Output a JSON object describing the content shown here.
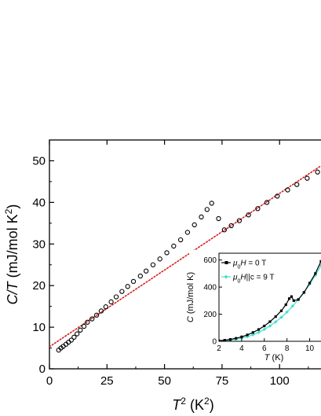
{
  "chart_data": [
    {
      "type": "scatter",
      "xlabel": "T² (K²)",
      "ylabel": "C/T (mJ/mol K²)",
      "xlim": [
        0,
        118
      ],
      "ylim": [
        0,
        55
      ],
      "x_ticks": [
        0,
        25,
        50,
        75,
        100
      ],
      "y_ticks": [
        0,
        10,
        20,
        30,
        40,
        50
      ],
      "series": [
        {
          "marker": "open-circle",
          "color": "#000000",
          "points": [
            [
              4.0,
              4.5
            ],
            [
              5.0,
              5.0
            ],
            [
              6.0,
              5.4
            ],
            [
              7.2,
              5.9
            ],
            [
              8.3,
              6.4
            ],
            [
              9.5,
              6.9
            ],
            [
              10.7,
              7.6
            ],
            [
              12.0,
              8.4
            ],
            [
              13.4,
              9.3
            ],
            [
              15.0,
              10.2
            ],
            [
              16.5,
              11.2
            ],
            [
              18.5,
              12.0
            ],
            [
              20.5,
              12.9
            ],
            [
              22.5,
              13.9
            ],
            [
              24.5,
              14.9
            ],
            [
              26.8,
              16.1
            ],
            [
              29.0,
              17.3
            ],
            [
              31.5,
              18.6
            ],
            [
              34.0,
              19.8
            ],
            [
              36.5,
              21.0
            ],
            [
              39.5,
              22.3
            ],
            [
              42.0,
              23.5
            ],
            [
              45.0,
              25.0
            ],
            [
              48.0,
              26.4
            ],
            [
              51.0,
              27.9
            ],
            [
              54.0,
              29.5
            ],
            [
              57.0,
              31.0
            ],
            [
              60.0,
              32.8
            ],
            [
              63.0,
              34.6
            ],
            [
              66.0,
              36.5
            ],
            [
              68.5,
              38.3
            ],
            [
              70.5,
              39.8
            ],
            [
              73.5,
              36.1
            ],
            [
              76.0,
              33.4
            ],
            [
              79.0,
              34.4
            ],
            [
              82.5,
              35.6
            ],
            [
              86.5,
              37.0
            ],
            [
              90.5,
              38.5
            ],
            [
              94.5,
              40.0
            ],
            [
              99.0,
              41.5
            ],
            [
              103.5,
              43.0
            ],
            [
              107.5,
              44.3
            ],
            [
              112.0,
              45.8
            ],
            [
              116.5,
              47.3
            ],
            [
              120.0,
              48.5
            ]
          ]
        },
        {
          "style": "dotted-line",
          "color": "#d62020",
          "points": [
            [
              0,
              5.3
            ],
            [
              118,
              48.8
            ]
          ]
        }
      ]
    },
    {
      "type": "line",
      "xlabel": "T (K)",
      "ylabel": "C (mJ/mol K)",
      "xlim": [
        2,
        11
      ],
      "ylim": [
        0,
        650
      ],
      "x_ticks": [
        2,
        4,
        6,
        8,
        10
      ],
      "y_ticks": [
        0,
        200,
        400,
        600
      ],
      "legend_position": "top-left",
      "series": [
        {
          "name": "μ0H = 0 T",
          "color": "#000000",
          "marker": "filled-square",
          "points": [
            [
              2.0,
              4
            ],
            [
              2.5,
              8
            ],
            [
              3.0,
              14
            ],
            [
              3.5,
              22
            ],
            [
              4.0,
              33
            ],
            [
              4.5,
              47
            ],
            [
              5.0,
              65
            ],
            [
              5.5,
              87
            ],
            [
              6.0,
              113
            ],
            [
              6.5,
              145
            ],
            [
              7.0,
              182
            ],
            [
              7.5,
              225
            ],
            [
              7.9,
              270
            ],
            [
              8.2,
              315
            ],
            [
              8.4,
              330
            ],
            [
              8.6,
              300
            ],
            [
              9.0,
              308
            ],
            [
              9.5,
              360
            ],
            [
              10.0,
              430
            ],
            [
              10.5,
              500
            ],
            [
              11.0,
              590
            ]
          ]
        },
        {
          "name": "μ0H||c = 9 T",
          "color": "#40e0d0",
          "marker": "filled-diamond",
          "points": [
            [
              2.0,
              2
            ],
            [
              2.5,
              5
            ],
            [
              3.0,
              9
            ],
            [
              3.5,
              15
            ],
            [
              4.0,
              23
            ],
            [
              4.5,
              34
            ],
            [
              5.0,
              48
            ],
            [
              5.5,
              66
            ],
            [
              6.0,
              88
            ],
            [
              6.5,
              113
            ],
            [
              7.0,
              143
            ],
            [
              7.5,
              177
            ],
            [
              8.0,
              216
            ],
            [
              8.5,
              260
            ],
            [
              9.0,
              309
            ],
            [
              9.5,
              363
            ],
            [
              10.0,
              422
            ],
            [
              10.5,
              487
            ],
            [
              11.0,
              560
            ]
          ]
        }
      ]
    }
  ]
}
